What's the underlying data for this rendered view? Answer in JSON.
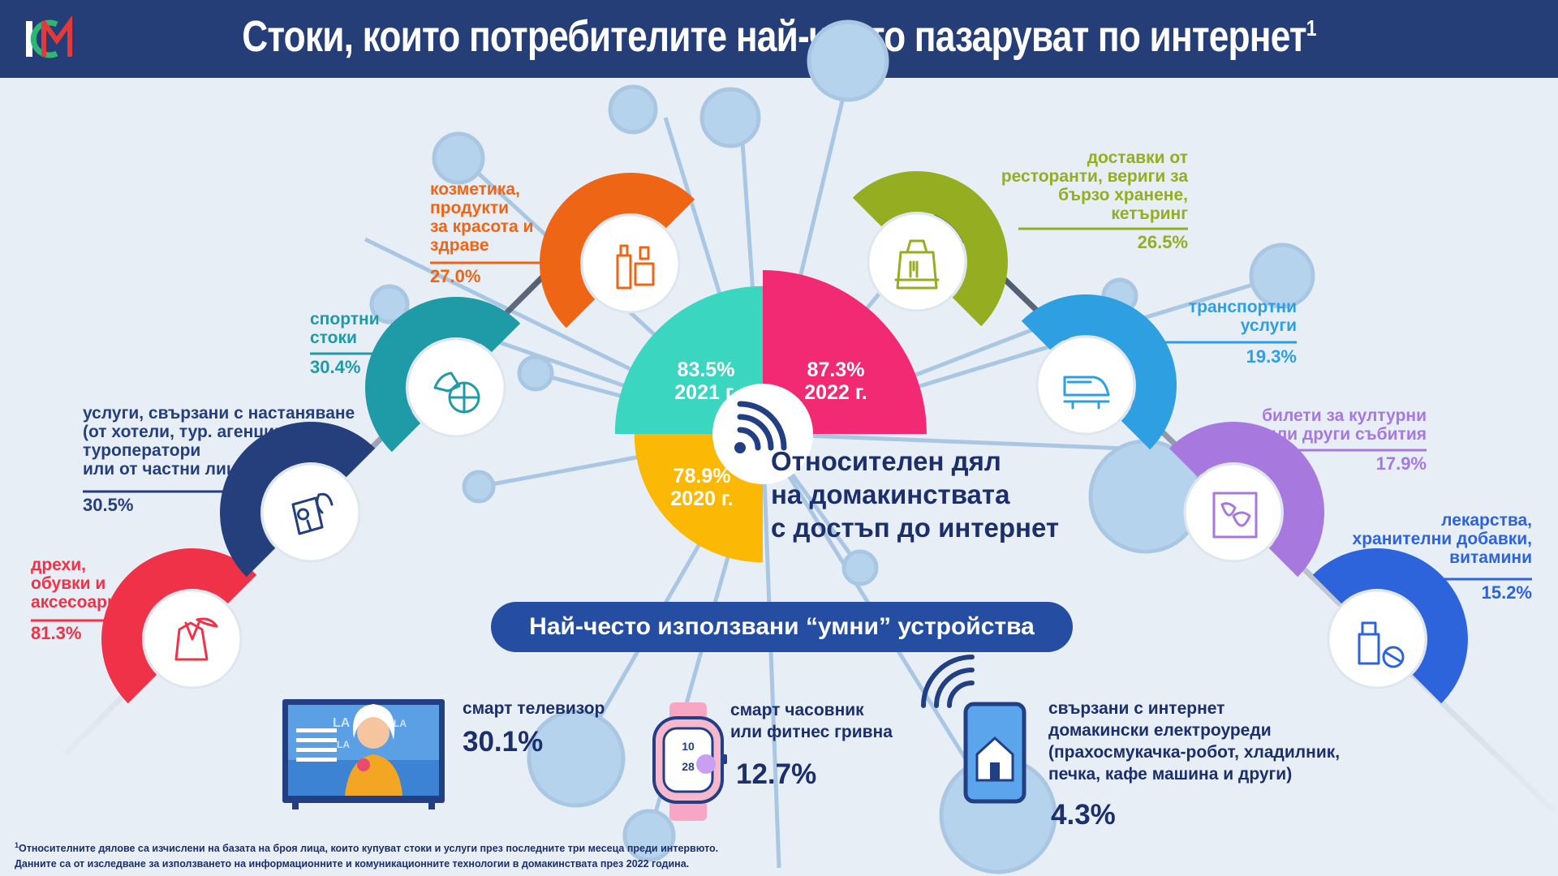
{
  "header": {
    "title": "Стоки, които потребителите най-често пазаруват по интернет",
    "title_sup": "1",
    "logo_icon": "nsi-logo-icon"
  },
  "categories": [
    {
      "label_lines": [
        "дрехи,",
        "обувки и",
        "аксесоари"
      ],
      "value": "81.3%",
      "color": "#ef3248",
      "icon": "clothes-icon"
    },
    {
      "label_lines": [
        "услуги, свързани с настаняване",
        "(от хотели, тур. агенции,",
        "туроператори",
        "или от частни лица)"
      ],
      "value": "30.5%",
      "color": "#243f7c",
      "icon": "travel-icon"
    },
    {
      "label_lines": [
        "спортни",
        "стоки"
      ],
      "value": "30.4%",
      "color": "#1f9aa7",
      "icon": "sports-icon"
    },
    {
      "label_lines": [
        "козметика,",
        "продукти",
        "за красота и",
        "здраве"
      ],
      "value": "27.0%",
      "color": "#ee6516",
      "icon": "cosmetics-icon"
    },
    {
      "label_lines": [
        "доставки от",
        "ресторанти, вериги за",
        "бързо хранене,",
        "кетъринг"
      ],
      "value": "26.5%",
      "color": "#95ad20",
      "icon": "food-delivery-icon"
    },
    {
      "label_lines": [
        "транспортни",
        "услуги"
      ],
      "value": "19.3%",
      "color": "#2e9fe0",
      "icon": "train-icon"
    },
    {
      "label_lines": [
        "билети за културни",
        "или други събития"
      ],
      "value": "17.9%",
      "color": "#a779df",
      "icon": "theater-icon"
    },
    {
      "label_lines": [
        "лекарства,",
        "хранителни добавки,",
        "витамини"
      ],
      "value": "15.2%",
      "color": "#2d64dc",
      "icon": "medicine-icon"
    }
  ],
  "internet_access": {
    "label_lines": [
      "Относителен дял",
      "на домакинствата",
      "с достъп до интернет"
    ],
    "years": [
      {
        "value": "83.5%",
        "year": "2021 г.",
        "color": "#3bd6c0"
      },
      {
        "value": "87.3%",
        "year": "2022 г.",
        "color": "#f22a73"
      },
      {
        "value": "78.9%",
        "year": "2020 г.",
        "color": "#fbb804"
      }
    ],
    "icon": "wifi-icon"
  },
  "smart_devices": {
    "title": "Най-често използвани “умни” устройства",
    "items": [
      {
        "label_lines": [
          "смарт телевизор"
        ],
        "value": "30.1%",
        "icon": "smart-tv-icon"
      },
      {
        "label_lines": [
          "смарт часовник",
          "или фитнес гривна"
        ],
        "value": "12.7%",
        "icon": "smartwatch-icon"
      },
      {
        "label_lines": [
          "свързани с интернет",
          "домакински електроуреди",
          "(прахосмукачка-робот, хладилник,",
          "печка, кафе машина и други)"
        ],
        "value": "4.3%",
        "icon": "smart-home-icon"
      }
    ],
    "tv_screen_text": [
      "LA",
      "LA",
      "LA"
    ],
    "watch_screen_text": [
      "10",
      "28"
    ]
  },
  "footnote": {
    "sup": "1",
    "line1": "Относителните дялове са изчислени на базата на броя лица, които купуват стоки и услуги през последните три месеца преди интервюто.",
    "line2": "Данните са от изследване за използването на информационните и комуникационните технологии в домакинствата през 2022 година."
  }
}
